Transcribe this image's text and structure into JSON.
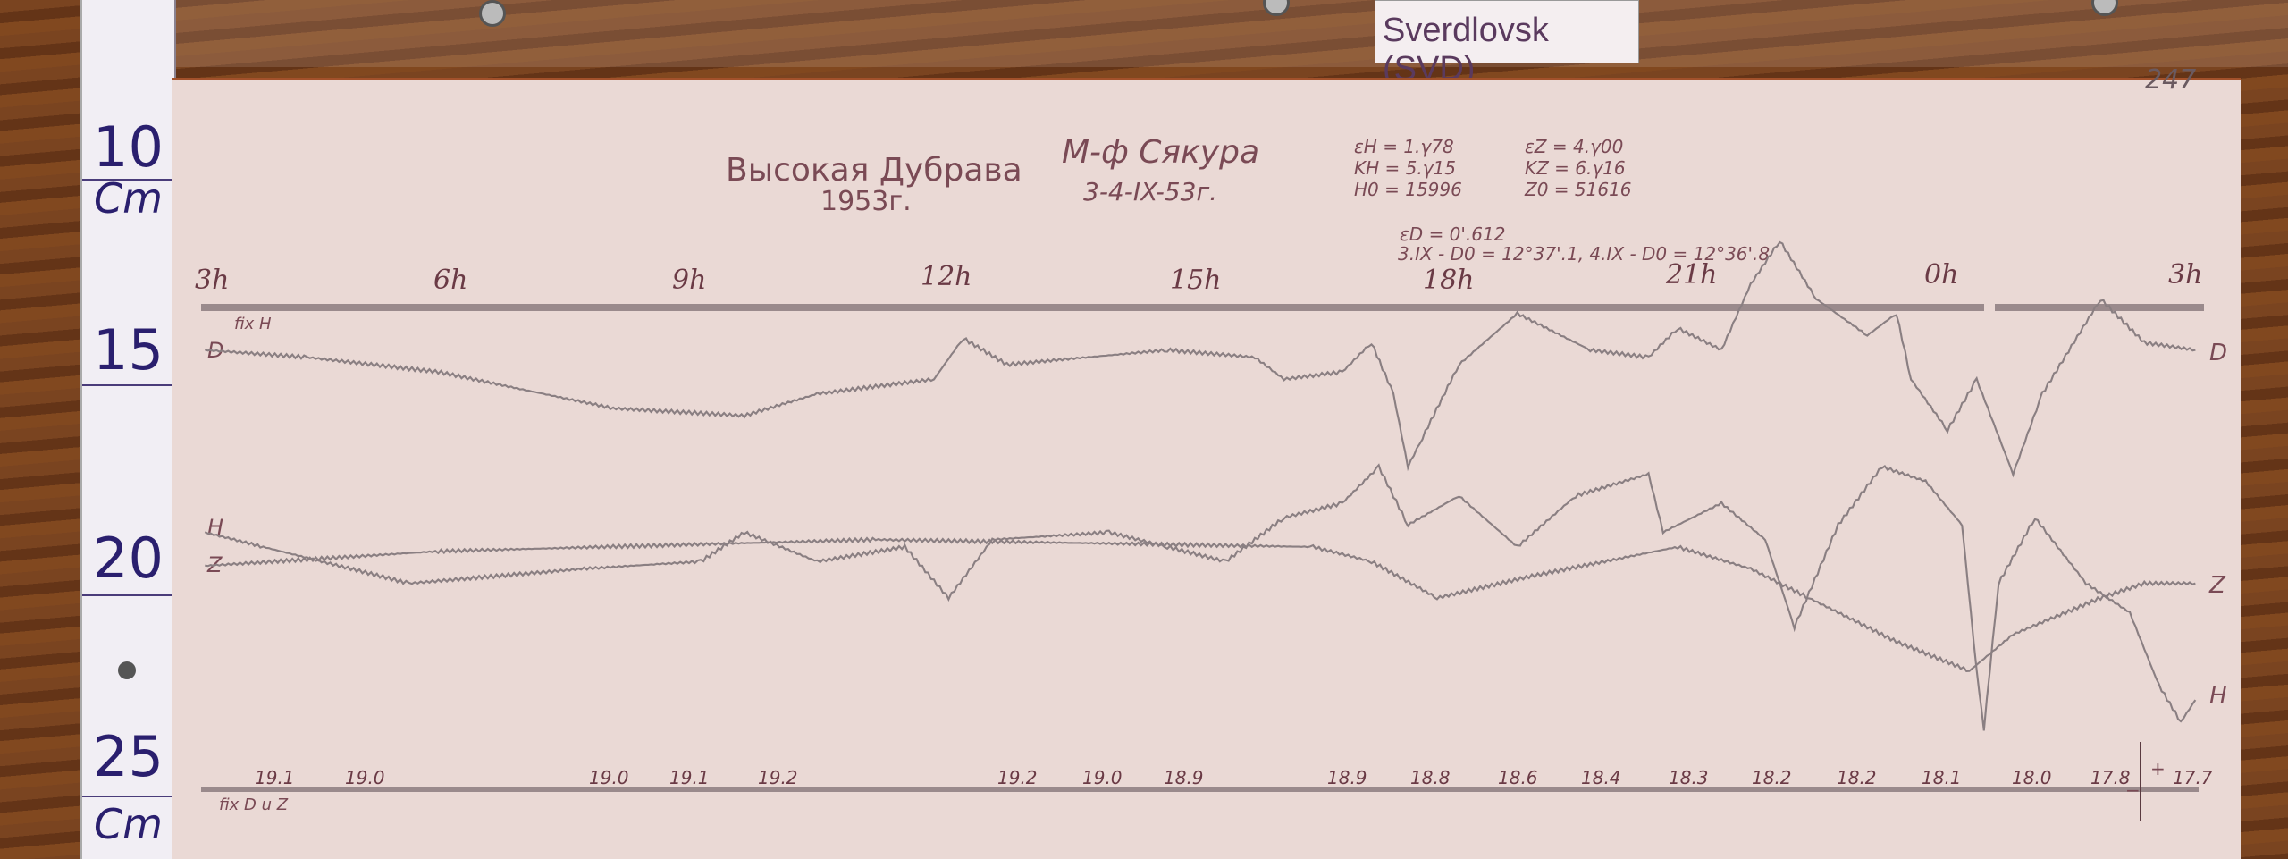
{
  "label_card": "Sverdlovsk (SVD)",
  "sheet_number": "247",
  "ruler": {
    "marks": [
      "10",
      "15",
      "20",
      "25"
    ],
    "unit": "Cm"
  },
  "header": {
    "station": "Высокая Дубрава",
    "year": "1953г.",
    "observer": "М-ф Сякура",
    "date": "3-4-IX-53г.",
    "params_h": [
      "εH = 1.γ78",
      "KH = 5.γ15",
      "H0 = 15996"
    ],
    "params_z": [
      "εZ = 4.γ00",
      "KZ = 6.γ16",
      "Z0 = 51616"
    ],
    "delta_d": "εD = 0'.612",
    "d0": "3.IX - D0 = 12°37'.1,  4.IX - D0 = 12°36'.8"
  },
  "hour_labels": [
    "3h",
    "6h",
    "9h",
    "12h",
    "15h",
    "18h",
    "21h",
    "0h",
    "3h"
  ],
  "top_note": "fix H",
  "bottom_note": "fix D u Z",
  "bottom_values": [
    "19.1",
    "19.0",
    "19.0",
    "19.1",
    "19.2",
    "19.2",
    "19.0",
    "18.9",
    "18.9",
    "18.8",
    "18.6",
    "18.4",
    "18.3",
    "18.2",
    "18.2",
    "18.1",
    "18.0",
    "17.8",
    "17.7"
  ],
  "trace_labels": {
    "left": [
      "D",
      "H",
      "Z"
    ],
    "right": [
      "D",
      "Z",
      "H"
    ]
  },
  "scale_marks": {
    "plus": "+",
    "minus": "−"
  },
  "colors": {
    "paper": "#ead9d5",
    "trace": "#8a7f82",
    "ink": "#7a4a55",
    "ruler_ink": "#2a1f6e"
  }
}
